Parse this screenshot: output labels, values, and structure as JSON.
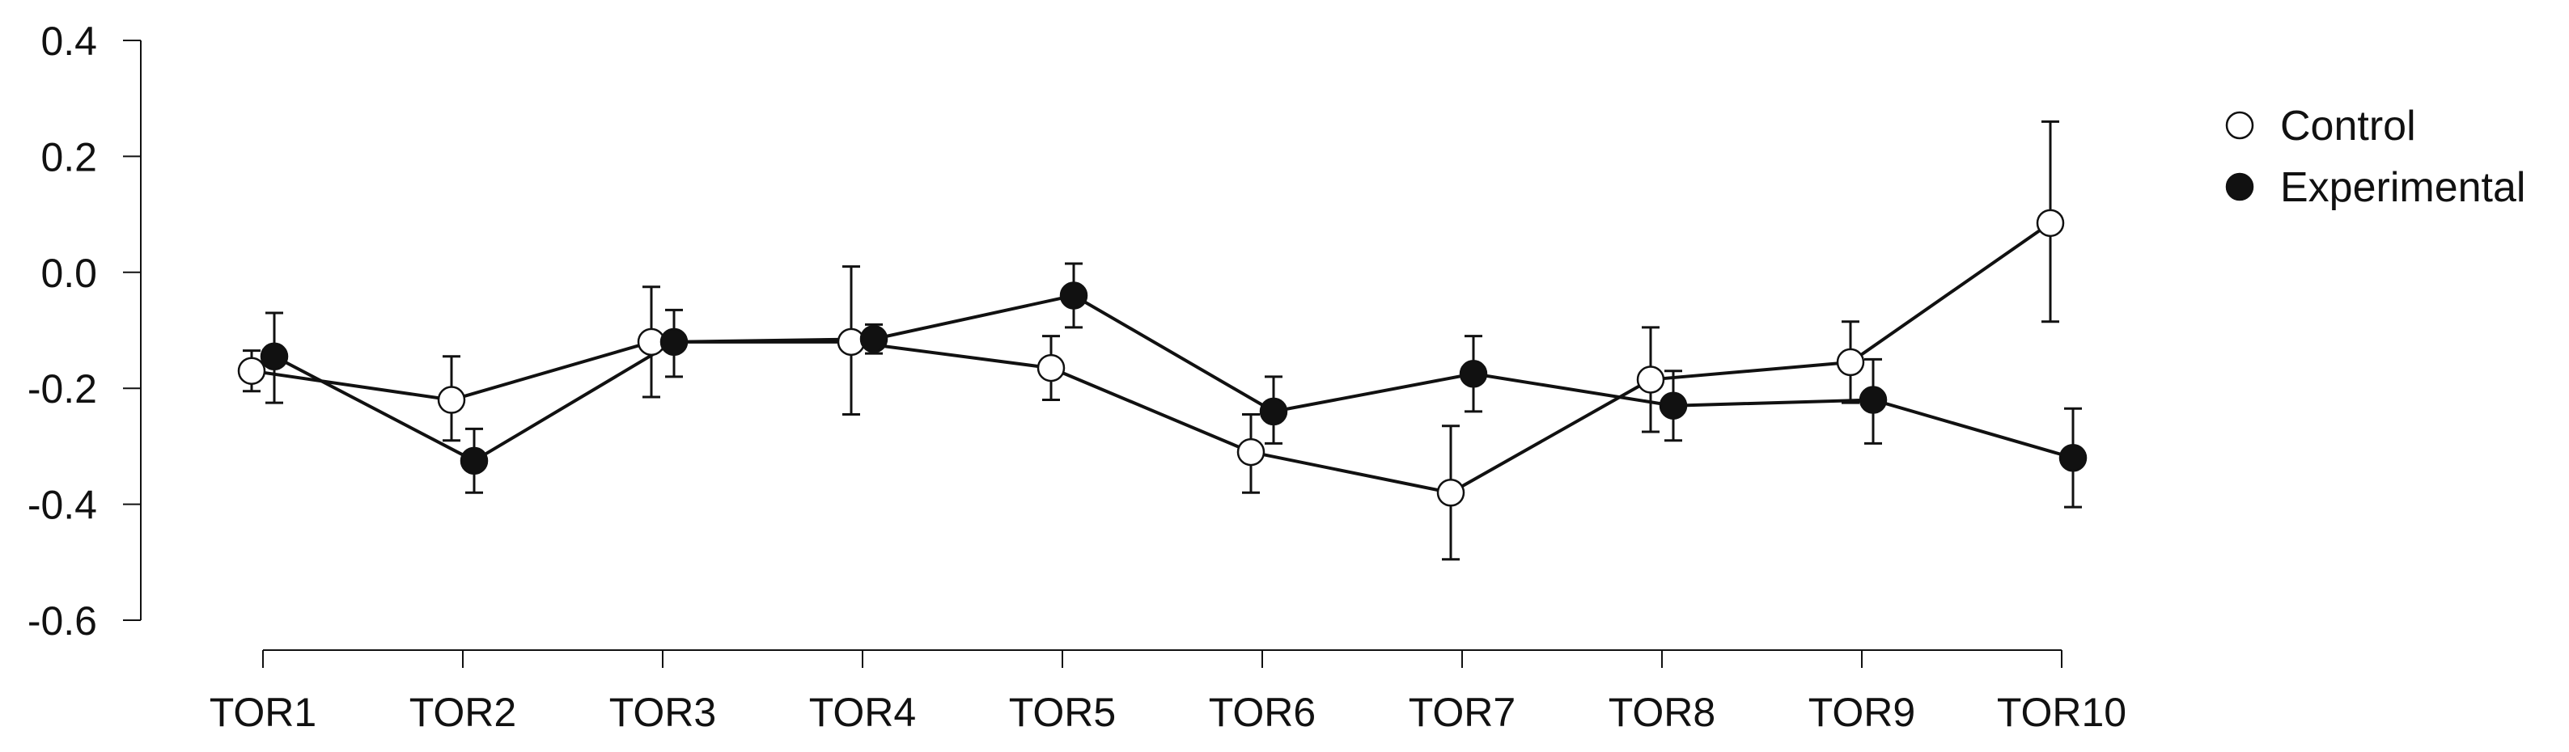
{
  "chart_data": {
    "type": "line",
    "title": "",
    "xlabel": "",
    "ylabel": "",
    "categories": [
      "TOR1",
      "TOR2",
      "TOR3",
      "TOR4",
      "TOR5",
      "TOR6",
      "TOR7",
      "TOR8",
      "TOR9",
      "TOR10"
    ],
    "ylim": [
      -0.6,
      0.4
    ],
    "yticks": [
      -0.6,
      -0.4,
      -0.2,
      0.0,
      0.2,
      0.4
    ],
    "ytick_labels": [
      "-0.6",
      "-0.4",
      "-0.2",
      "0.0",
      "0.2",
      "0.4"
    ],
    "grid": false,
    "legend_position": "top-right",
    "series": [
      {
        "name": "Control",
        "marker": "open-circle",
        "color": "#ffffff",
        "values": [
          -0.17,
          -0.22,
          -0.12,
          -0.12,
          -0.165,
          -0.31,
          -0.38,
          -0.185,
          -0.155,
          0.085
        ],
        "err_low": [
          -0.205,
          -0.29,
          -0.215,
          -0.245,
          -0.22,
          -0.38,
          -0.495,
          -0.275,
          -0.225,
          -0.085
        ],
        "err_high": [
          -0.135,
          -0.145,
          -0.025,
          0.01,
          -0.11,
          -0.245,
          -0.265,
          -0.095,
          -0.085,
          0.26
        ]
      },
      {
        "name": "Experimental",
        "marker": "filled-circle",
        "color": "#111111",
        "values": [
          -0.145,
          -0.325,
          -0.12,
          -0.115,
          -0.04,
          -0.24,
          -0.175,
          -0.23,
          -0.22,
          -0.32
        ],
        "err_low": [
          -0.225,
          -0.38,
          -0.18,
          -0.14,
          -0.095,
          -0.295,
          -0.24,
          -0.29,
          -0.295,
          -0.405
        ],
        "err_high": [
          -0.07,
          -0.27,
          -0.065,
          -0.09,
          0.015,
          -0.18,
          -0.11,
          -0.17,
          -0.15,
          -0.235
        ]
      }
    ]
  }
}
